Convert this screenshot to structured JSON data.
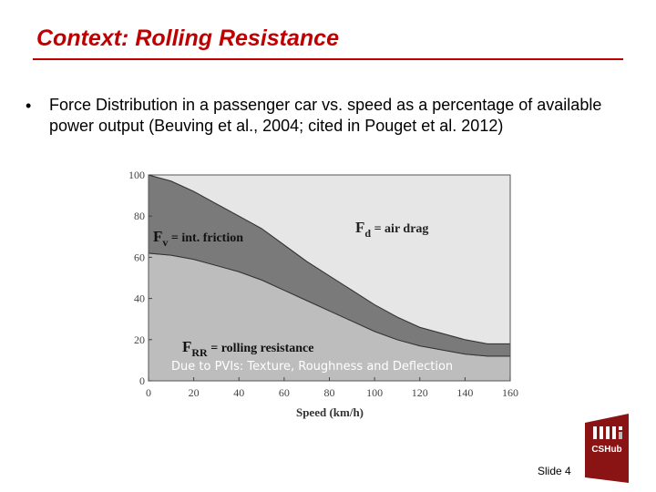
{
  "slide": {
    "title": "Context: Rolling Resistance",
    "bullet_symbol": "•",
    "bullet_text": "Force Distribution in a passenger car vs. speed as a percentage of available power output (Beuving et al., 2004; cited in Pouget et al. 2012)",
    "slide_number_label": "Slide  4",
    "logo_text": "CSHub",
    "title_color": "#c00000"
  },
  "chart_data": {
    "type": "area",
    "xlabel": "Speed (km/h)",
    "ylabel": "",
    "xlim": [
      0,
      160
    ],
    "ylim": [
      0,
      100
    ],
    "x_ticks": [
      0,
      20,
      40,
      60,
      80,
      100,
      120,
      140,
      160
    ],
    "y_ticks": [
      0,
      20,
      40,
      60,
      80,
      100
    ],
    "x": [
      0,
      10,
      20,
      30,
      40,
      50,
      60,
      70,
      80,
      90,
      100,
      110,
      120,
      130,
      140,
      150,
      160
    ],
    "series": [
      {
        "name": "FRR = rolling resistance",
        "color": "#bdbdbd",
        "values": [
          62,
          61,
          59,
          56,
          53,
          49,
          44,
          39,
          34,
          29,
          24,
          20,
          17,
          15,
          13,
          12,
          12
        ]
      },
      {
        "name": "Fv = int. friction",
        "color": "#7a7a7a",
        "values": [
          38,
          36,
          33,
          30,
          27,
          25,
          22,
          19,
          17,
          15,
          13,
          11,
          9,
          8,
          7,
          6,
          6
        ]
      },
      {
        "name": "Fd = air drag",
        "color": "#e6e6e6",
        "values": [
          0,
          3,
          8,
          14,
          20,
          26,
          34,
          42,
          49,
          56,
          63,
          69,
          74,
          77,
          80,
          82,
          82
        ]
      }
    ],
    "annotations": {
      "air_drag_main": "F",
      "air_drag_sub": "d",
      "air_drag_rest": " = air drag",
      "friction_main": "F",
      "friction_sub": "v",
      "friction_rest": " = int. friction",
      "rolling_main": "F",
      "rolling_sub": "RR",
      "rolling_rest": " = rolling resistance",
      "overlay_caption": "Due to PVIs: Texture, Roughness and Deflection"
    },
    "grid": false,
    "legend": "none"
  }
}
